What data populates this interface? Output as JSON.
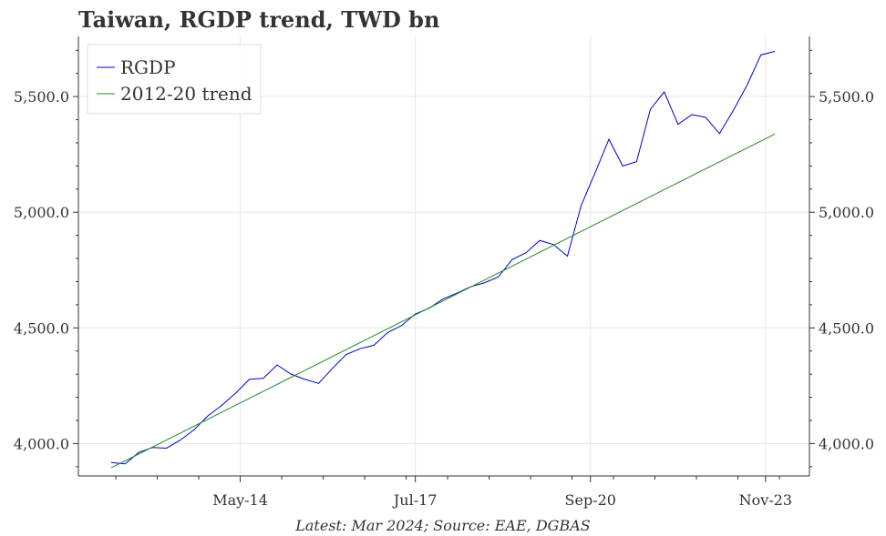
{
  "chart_data": {
    "type": "line",
    "title": "Taiwan, RGDP trend, TWD bn",
    "source_note": "Latest: Mar 2024; Source: EAE, DGBAS",
    "xlabel": "",
    "ylabel": "",
    "x_tick_labels": [
      "May-14",
      "Jul-17",
      "Sep-20",
      "Nov-23"
    ],
    "y_tick_labels": [
      "4,000.0",
      "4,500.0",
      "5,000.0",
      "5,500.0"
    ],
    "y_ticks": [
      4000,
      4500,
      5000,
      5500
    ],
    "ylim": [
      3860,
      5760
    ],
    "y_axis_both_sides": true,
    "grid": true,
    "legend_position": "top-left",
    "x_start": "2012-Q1",
    "x_end": "2024-Q1",
    "x_frequency": "quarterly",
    "series": [
      {
        "name": "RGDP",
        "color": "#0000cc",
        "x_start": "2012-Q1",
        "values": [
          3918,
          3912,
          3962,
          3983,
          3980,
          4015,
          4060,
          4120,
          4165,
          4218,
          4278,
          4282,
          4340,
          4300,
          4278,
          4260,
          4325,
          4385,
          4410,
          4425,
          4480,
          4510,
          4560,
          4585,
          4625,
          4650,
          4678,
          4695,
          4720,
          4795,
          4825,
          4878,
          4860,
          4810,
          5030,
          5170,
          5315,
          5200,
          5218,
          5445,
          5520,
          5380,
          5422,
          5410,
          5340,
          5440,
          5550,
          5680,
          5695
        ]
      },
      {
        "name": "2012-20 trend",
        "color": "#228b22",
        "x_start": "2012-Q1",
        "x_end": "2024-Q1",
        "start_value": 3895,
        "end_value": 5338
      }
    ]
  }
}
